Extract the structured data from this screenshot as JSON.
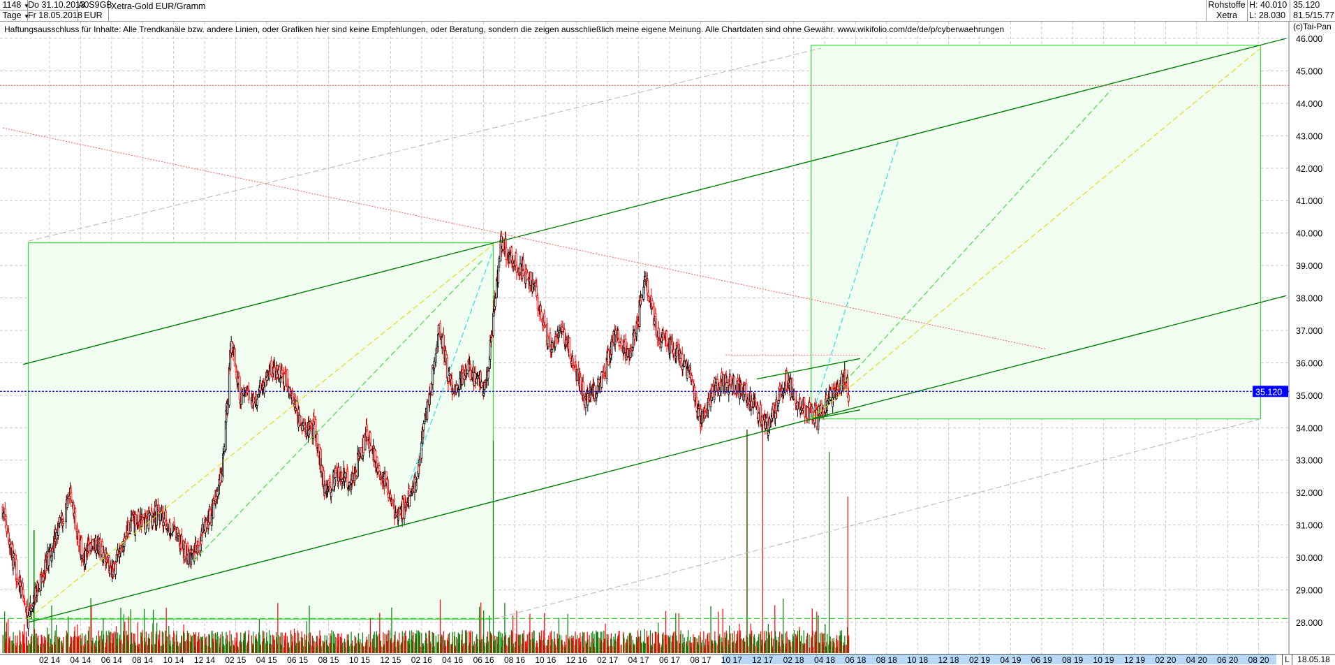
{
  "header": {
    "count": "1148",
    "period": "Tage",
    "date_from": "Do 31.10.2013",
    "date_to": "Fr 18.05.2018",
    "wkn": "A0S9GB",
    "currency": "EUR",
    "title": "Xetra-Gold EUR/Gramm",
    "category": "Rohstoffe",
    "exchange": "Xetra",
    "high": "H: 40.010",
    "low": "L: 28.030",
    "last": "35.120",
    "ratio": "81.5/15.77"
  },
  "disclaimer": "Haftungsausschluss für Inhalte: Alle Trendkanäle bzw. andere Linien, oder Grafiken hier sind keine Empfehlungen, oder Beratung, sondern die zeigen ausschließlich meine eigene Meinung. Alle Chartdaten sind ohne Gewähr.  www.wikifolio.com/de/de/p/cyberwaehrungen",
  "copyright": "(c)Tai-Pan",
  "footer": {
    "flag": "L",
    "last_date": "18.05.18"
  },
  "colors": {
    "up": "#000000",
    "down": "#ff0000",
    "vol_up": "#008000",
    "vol_down": "#ff0000",
    "channel": "#008000",
    "box_fill": "#f0fdf0",
    "box_stroke": "#33dd33",
    "last_price": "#0000ff"
  },
  "chart_data": {
    "type": "candlestick",
    "ylim": [
      28,
      46
    ],
    "y_ticks": [
      "46.000",
      "45.000",
      "44.000",
      "43.000",
      "42.000",
      "41.000",
      "40.000",
      "39.000",
      "38.000",
      "37.000",
      "36.000",
      "35.000",
      "34.000",
      "33.000",
      "32.000",
      "31.000",
      "30.000",
      "29.000",
      "28.000"
    ],
    "x_ticks": [
      "02 14",
      "04 14",
      "06 14",
      "08 14",
      "10 14",
      "12 14",
      "02 15",
      "04 15",
      "06 15",
      "08 15",
      "10 15",
      "12 15",
      "02 16",
      "04 16",
      "06 16",
      "08 16",
      "10 16",
      "12 16",
      "02 17",
      "04 17",
      "06 17",
      "08 17",
      "10 17",
      "12 17",
      "02 18",
      "04 18",
      "06 18",
      "08 18",
      "10 18",
      "12 18",
      "02 19",
      "04 19",
      "06 19",
      "08 19",
      "10 19",
      "12 19",
      "02 20",
      "04 20",
      "06 20",
      "08 20"
    ],
    "last_price": 35.12,
    "last_price_label": "35.120",
    "close_path": [
      [
        "2013-10-31",
        31.5
      ],
      [
        "2013-11-20",
        30.0
      ],
      [
        "2013-12-20",
        28.1
      ],
      [
        "2014-01-10",
        29.2
      ],
      [
        "2014-02-10",
        30.5
      ],
      [
        "2014-03-12",
        31.9
      ],
      [
        "2014-04-05",
        30.0
      ],
      [
        "2014-05-01",
        30.5
      ],
      [
        "2014-06-05",
        29.6
      ],
      [
        "2014-07-05",
        31.0
      ],
      [
        "2014-08-01",
        31.1
      ],
      [
        "2014-09-01",
        31.4
      ],
      [
        "2014-10-01",
        30.8
      ],
      [
        "2014-11-05",
        29.9
      ],
      [
        "2014-12-05",
        31.0
      ],
      [
        "2015-01-05",
        32.5
      ],
      [
        "2015-01-24",
        36.8
      ],
      [
        "2015-02-10",
        35.0
      ],
      [
        "2015-03-10",
        34.9
      ],
      [
        "2015-04-10",
        35.8
      ],
      [
        "2015-05-10",
        35.4
      ],
      [
        "2015-06-10",
        34.0
      ],
      [
        "2015-07-05",
        34.0
      ],
      [
        "2015-07-25",
        32.0
      ],
      [
        "2015-08-20",
        32.6
      ],
      [
        "2015-09-15",
        32.3
      ],
      [
        "2015-10-15",
        33.8
      ],
      [
        "2015-11-15",
        32.5
      ],
      [
        "2015-12-15",
        31.2
      ],
      [
        "2016-01-15",
        32.0
      ],
      [
        "2016-02-15",
        34.8
      ],
      [
        "2016-03-05",
        37.0
      ],
      [
        "2016-04-01",
        35.0
      ],
      [
        "2016-05-01",
        35.8
      ],
      [
        "2016-06-05",
        35.2
      ],
      [
        "2016-07-05",
        39.7
      ],
      [
        "2016-08-05",
        39.0
      ],
      [
        "2016-09-05",
        38.5
      ],
      [
        "2016-10-10",
        36.5
      ],
      [
        "2016-11-05",
        37.0
      ],
      [
        "2016-12-15",
        35.0
      ],
      [
        "2017-01-15",
        35.2
      ],
      [
        "2017-02-15",
        36.8
      ],
      [
        "2017-03-15",
        36.2
      ],
      [
        "2017-04-15",
        38.6
      ],
      [
        "2017-05-10",
        36.8
      ],
      [
        "2017-06-10",
        36.5
      ],
      [
        "2017-07-10",
        35.6
      ],
      [
        "2017-08-01",
        34.3
      ],
      [
        "2017-09-01",
        35.3
      ],
      [
        "2017-10-01",
        35.4
      ],
      [
        "2017-11-01",
        35.0
      ],
      [
        "2017-12-12",
        34.0
      ],
      [
        "2018-01-15",
        35.5
      ],
      [
        "2018-02-10",
        34.8
      ],
      [
        "2018-03-15",
        34.3
      ],
      [
        "2018-04-15",
        35.0
      ],
      [
        "2018-05-10",
        35.6
      ],
      [
        "2018-05-18",
        35.12
      ]
    ],
    "volume_spikes": [
      [
        "2014-01-01",
        0.55
      ],
      [
        "2014-07-20",
        0.3
      ],
      [
        "2016-06-20",
        0.95
      ],
      [
        "2017-05-20",
        0.3
      ],
      [
        "2017-11-01",
        1.0
      ],
      [
        "2017-12-01",
        1.05
      ],
      [
        "2018-02-10",
        0.7
      ],
      [
        "2018-04-10",
        0.9
      ],
      [
        "2018-05-16",
        0.7
      ]
    ],
    "overlays": [
      {
        "kind": "line",
        "color": "#008000",
        "style": "solid",
        "from": [
          "2013-12-10",
          35.95
        ],
        "to": [
          "2020-09-25",
          46.0
        ]
      },
      {
        "kind": "line",
        "color": "#008000",
        "style": "solid",
        "from": [
          "2013-12-20",
          28.0
        ],
        "to": [
          "2020-09-25",
          38.07
        ]
      },
      {
        "kind": "line",
        "color": "#008000",
        "style": "solid",
        "from": [
          "2017-11-20",
          35.5
        ],
        "to": [
          "2018-06-10",
          36.13
        ]
      },
      {
        "kind": "line",
        "color": "#008000",
        "style": "solid",
        "from": [
          "2018-03-10",
          34.27
        ],
        "to": [
          "2018-06-10",
          34.55
        ]
      },
      {
        "kind": "box",
        "from": [
          "2013-12-20",
          39.7
        ],
        "to": [
          "2016-06-20",
          28.1
        ]
      },
      {
        "kind": "box",
        "from": [
          "2018-03-05",
          45.79
        ],
        "to": [
          "2020-08-05",
          34.27
        ]
      },
      {
        "kind": "line",
        "color": "#bbbbbb",
        "style": "dash",
        "from": [
          "2013-12-20",
          39.75
        ],
        "to": [
          "2018-03-25",
          45.7
        ]
      },
      {
        "kind": "line",
        "color": "#bbbbbb",
        "style": "dash",
        "from": [
          "2016-06-20",
          28.1
        ],
        "to": [
          "2020-08-05",
          34.27
        ]
      },
      {
        "kind": "line",
        "color": "#ff6666",
        "style": "dot",
        "from": [
          "2013-10-31",
          43.24
        ],
        "to": [
          "2019-06-10",
          36.42
        ]
      },
      {
        "kind": "hline",
        "color": "#ff6666",
        "style": "dot",
        "price": 44.55
      },
      {
        "kind": "line",
        "color": "#ff6666",
        "style": "dot",
        "from": [
          "2017-09-20",
          36.24
        ],
        "to": [
          "2018-06-10",
          36.24
        ]
      },
      {
        "kind": "hline",
        "color": "#22dd22",
        "style": "dash",
        "price": 28.12
      },
      {
        "kind": "line",
        "color": "#dddd00",
        "style": "dash",
        "from": [
          "2013-12-20",
          28.1
        ],
        "to": [
          "2016-06-20",
          39.65
        ]
      },
      {
        "kind": "line",
        "color": "#33dd33",
        "style": "dash",
        "from": [
          "2014-11-10",
          29.9
        ],
        "to": [
          "2016-06-01",
          39.2
        ]
      },
      {
        "kind": "line",
        "color": "#22dddd",
        "style": "dash",
        "from": [
          "2016-01-10",
          32.4
        ],
        "to": [
          "2016-06-20",
          39.5
        ]
      },
      {
        "kind": "line",
        "color": "#22dddd",
        "style": "dash",
        "from": [
          "2018-03-05",
          34.27
        ],
        "to": [
          "2018-08-25",
          42.9
        ]
      },
      {
        "kind": "line",
        "color": "#33dd33",
        "style": "dash",
        "from": [
          "2018-03-05",
          34.27
        ],
        "to": [
          "2019-10-15",
          44.4
        ]
      },
      {
        "kind": "line",
        "color": "#dddd00",
        "style": "dash",
        "from": [
          "2018-03-05",
          34.27
        ],
        "to": [
          "2020-08-05",
          45.7
        ]
      }
    ]
  }
}
